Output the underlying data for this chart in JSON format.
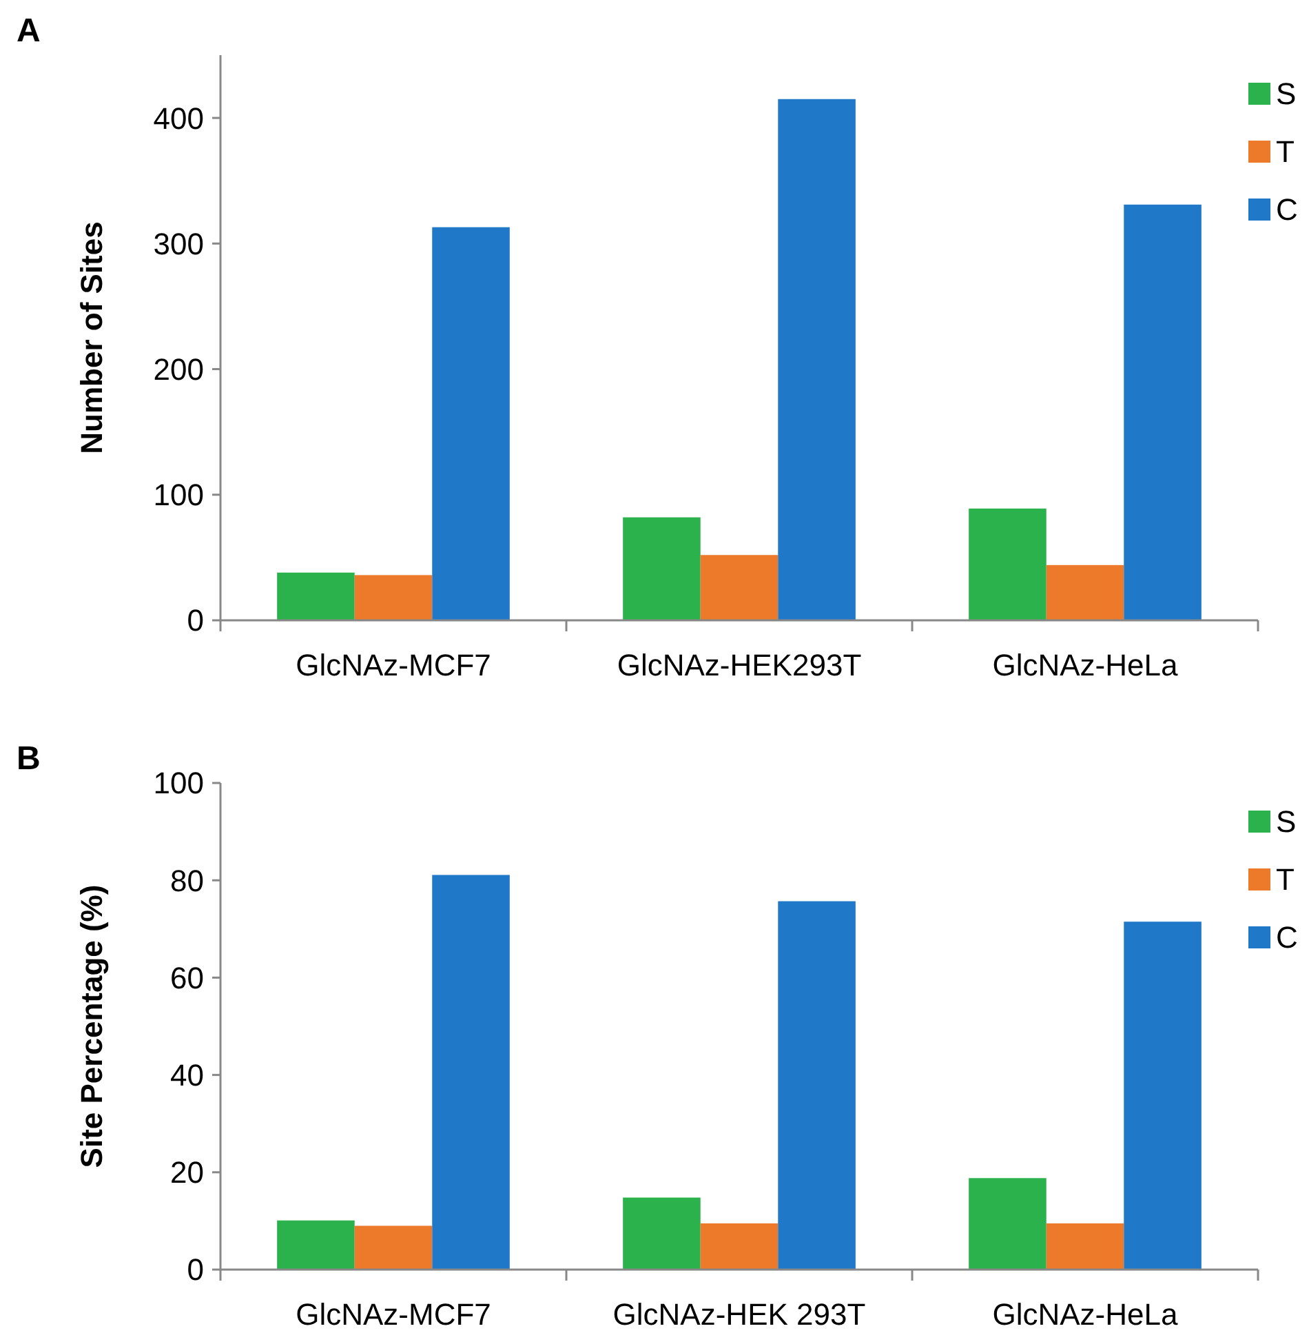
{
  "chart_data": [
    {
      "type": "bar",
      "title": "A",
      "ylabel": "Number of Sites",
      "categories": [
        "GlcNAz-MCF7",
        "GlcNAz-HEK293T",
        "GlcNAz-HeLa"
      ],
      "series": [
        {
          "name": "S",
          "color": "#2bb24c",
          "values": [
            38,
            82,
            89
          ]
        },
        {
          "name": "T",
          "color": "#ec7a2a",
          "values": [
            36,
            52,
            44
          ]
        },
        {
          "name": "C",
          "color": "#1f78c8",
          "values": [
            313,
            415,
            331
          ]
        }
      ],
      "ylim": [
        0,
        450
      ],
      "yticks": [
        0,
        100,
        200,
        300,
        400
      ],
      "grid": false,
      "legend": "top right"
    },
    {
      "type": "bar",
      "title": "B",
      "ylabel": "Site Percentage (%)",
      "categories": [
        "GlcNAz-MCF7",
        "GlcNAz-HEK 293T",
        "GlcNAz-HeLa"
      ],
      "series": [
        {
          "name": "S",
          "color": "#2bb24c",
          "values": [
            10.1,
            14.8,
            18.8
          ]
        },
        {
          "name": "T",
          "color": "#ec7a2a",
          "values": [
            9,
            9.5,
            9.5
          ]
        },
        {
          "name": "C",
          "color": "#1f78c8",
          "values": [
            81.1,
            75.7,
            71.5
          ]
        }
      ],
      "ylim": [
        0,
        100
      ],
      "yticks": [
        0,
        20,
        40,
        60,
        80,
        100
      ],
      "grid": false,
      "legend": "top right"
    }
  ]
}
